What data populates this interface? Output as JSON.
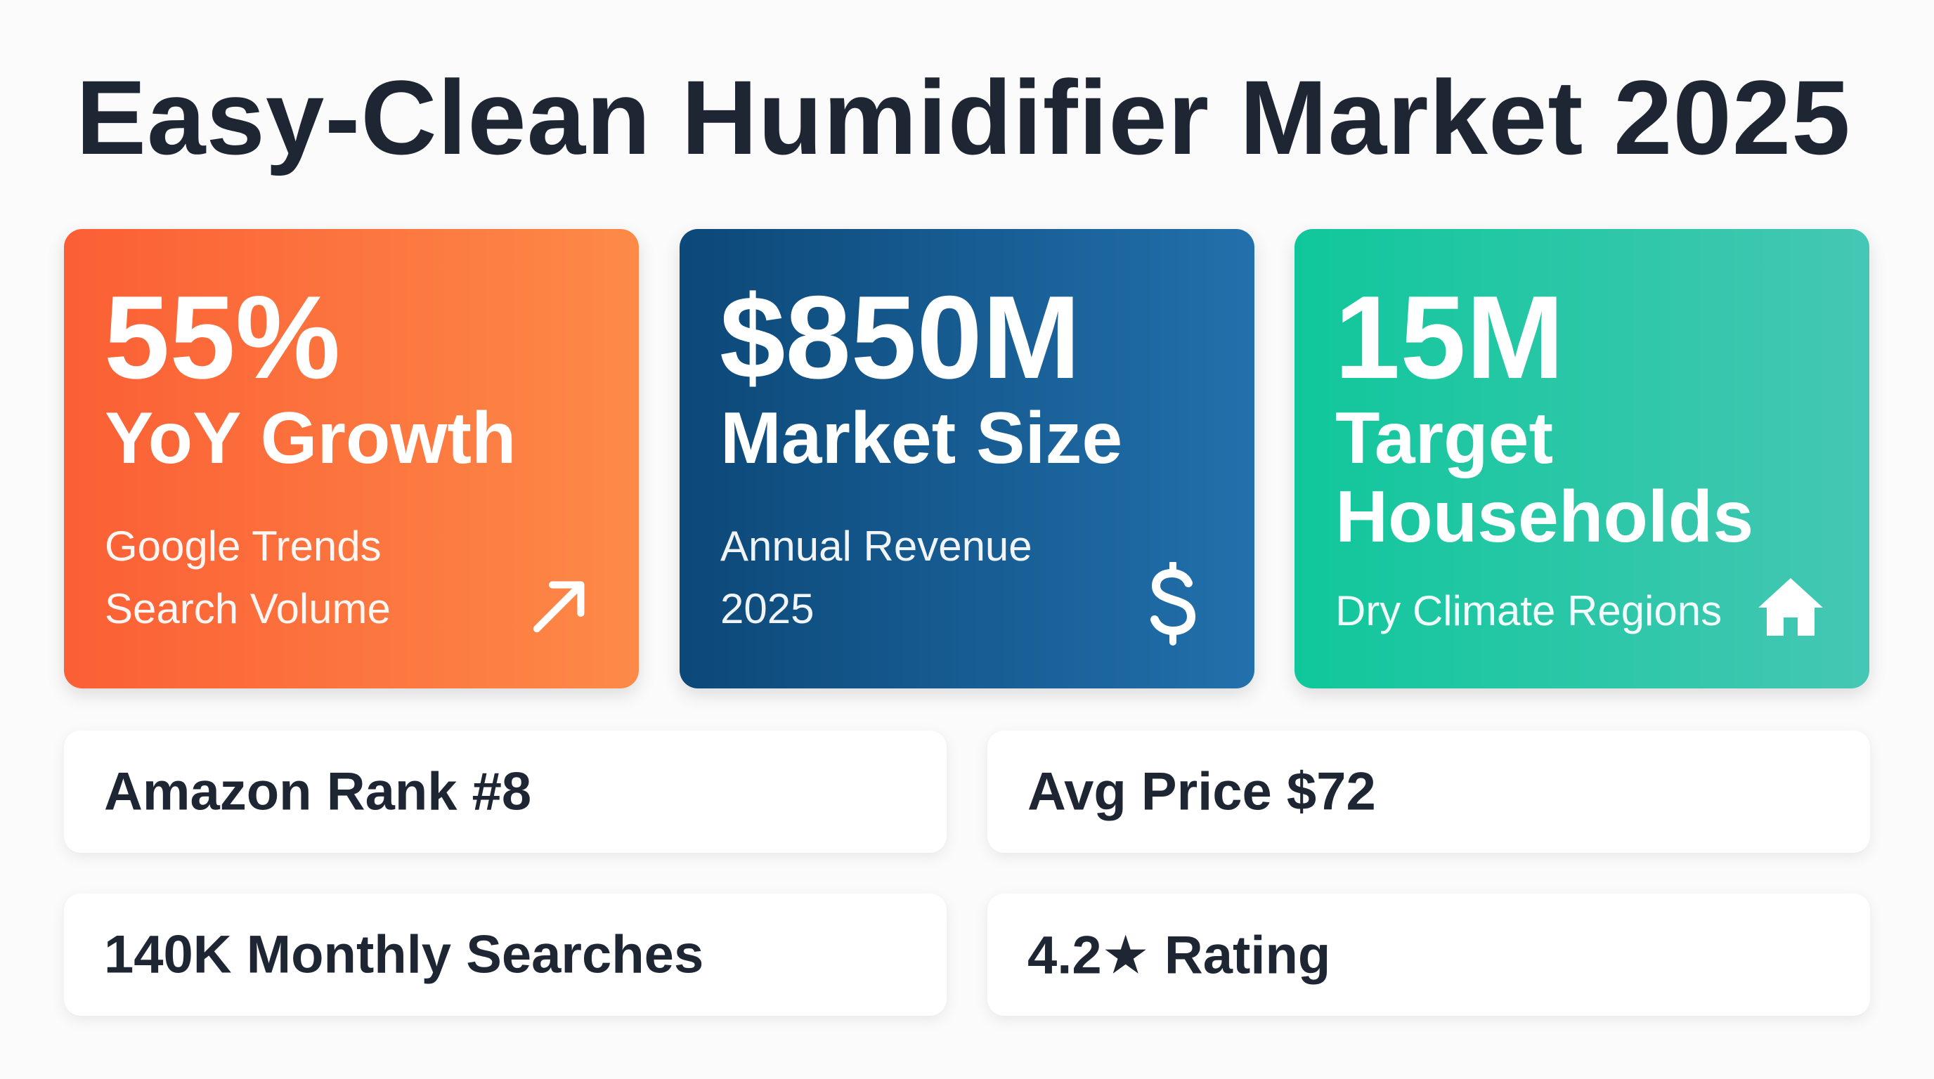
{
  "title": "Easy-Clean Humidifier Market 2025",
  "cards": [
    {
      "value": "55%",
      "label": "YoY Growth",
      "sub_line1": "Google Trends",
      "sub_line2": "Search Volume",
      "icon": "trend-up-arrow-icon",
      "gradient": [
        "#fb5f35",
        "#fd8a48"
      ]
    },
    {
      "value": "$850M",
      "label": "Market Size",
      "sub_line1": "Annual Revenue",
      "sub_line2": "2025",
      "icon": "dollar-icon",
      "gradient": [
        "#0c4878",
        "#2270ac"
      ]
    },
    {
      "value": "15M",
      "label_line1": "Target",
      "label_line2": "Households",
      "sub": "Dry Climate Regions",
      "icon": "house-icon",
      "gradient": [
        "#10c79b",
        "#45c7b4"
      ]
    }
  ],
  "stats": [
    "Amazon Rank #8",
    "Avg Price $72",
    "140K Monthly Searches",
    "4.2★ Rating"
  ],
  "colors": {
    "background": "#fbfbfb",
    "text_dark": "#1f2633",
    "card_white": "#ffffff"
  }
}
